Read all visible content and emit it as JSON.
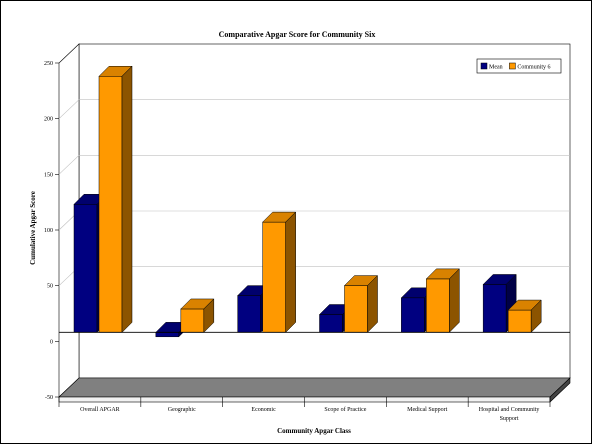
{
  "chart_data": {
    "type": "bar",
    "title": "Comparative Apgar Score for Community Six",
    "xlabel": "Community Apgar Class",
    "ylabel": "Cumulative Apgar Score",
    "categories": [
      [
        "Overall APGAR"
      ],
      [
        "Geographic"
      ],
      [
        "Economic"
      ],
      [
        "Scope of Practice"
      ],
      [
        "Medical Support"
      ],
      [
        "Hospital and Community",
        "Support"
      ]
    ],
    "series": [
      {
        "name": "Mean",
        "values": [
          115,
          -4,
          33,
          16,
          31,
          43
        ],
        "color": "#000080"
      },
      {
        "name": "Community 6",
        "values": [
          230,
          21,
          99,
          42,
          48,
          20
        ],
        "color": "#FF9900"
      }
    ],
    "ylim": [
      -50,
      250
    ],
    "yticks": [
      -50,
      0,
      50,
      100,
      150,
      200,
      250
    ],
    "grid": true,
    "legend_position": "top-right",
    "bar_style": "3d",
    "floor_color": "#808080"
  }
}
